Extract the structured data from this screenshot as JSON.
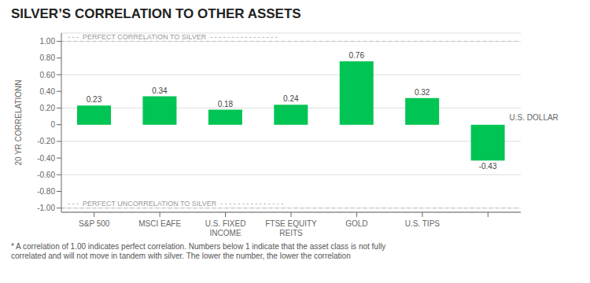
{
  "chart_data": {
    "type": "bar",
    "title": "SILVER’S CORRELATION TO OTHER ASSETS",
    "categories": [
      "S&P 500",
      "MSCI EAFE",
      "U.S. FIXED\nINCOME",
      "FTSE EQUITY\nREITS",
      "GOLD",
      "U.S. TIPS",
      null
    ],
    "values": [
      0.23,
      0.34,
      0.18,
      0.24,
      0.76,
      0.32,
      -0.43
    ],
    "color": "#00C453",
    "ylabel": "20 YR CORRELATIONN",
    "ylim": [
      -1.05,
      1.1
    ],
    "yticks": [
      {
        "value": -1,
        "label": "-1.00"
      },
      {
        "value": -0.8,
        "label": "-0.80"
      },
      {
        "value": -0.6,
        "label": "-0.60"
      },
      {
        "value": -0.4,
        "label": "-0.40"
      },
      {
        "value": -0.2,
        "label": "-0.20"
      },
      0,
      {
        "value": 0.2,
        "label": "0.20"
      },
      {
        "value": 0.4,
        "label": "0.40"
      },
      {
        "value": 0.6,
        "label": "0.60"
      },
      {
        "value": 0.8,
        "label": "0.80"
      },
      {
        "value": 1,
        "label": "1.00"
      }
    ],
    "grid": true,
    "data_labels": true,
    "reference_lines": [
      {
        "value": 1,
        "label": "- - -  PERFECT CORRELATION TO SILVER  - - - - - - - - - - - - - - - -"
      },
      {
        "value": -1,
        "label": "- - -  PERFECT UNCORRELATION TO SILVER  - - - - - - - - - - - - - - -"
      }
    ],
    "annotations": [
      {
        "text": "U.S. DOLLAR",
        "category_index": 6
      }
    ],
    "footnote": "* A correlation of 1.00 indicates perfect correlation. Numbers below 1 indicate that the asset class is not fully\ncorrelated and will not move in tandem with silver. The lower the number, the lower the correlation"
  }
}
